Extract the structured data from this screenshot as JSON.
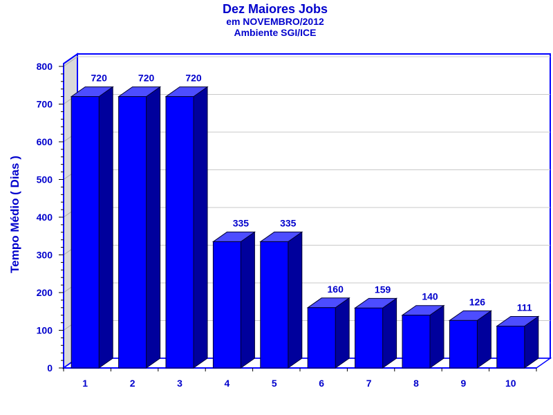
{
  "chart_data": {
    "type": "bar",
    "title": "Dez Maiores Jobs",
    "subtitle_1": "em NOVEMBRO/2012",
    "subtitle_2": "Ambiente SGI/ICE",
    "ylabel": "Tempo Médio ( Dias )",
    "xlabel": "",
    "categories": [
      "1",
      "2",
      "3",
      "4",
      "5",
      "6",
      "7",
      "8",
      "9",
      "10"
    ],
    "values": [
      720,
      720,
      720,
      335,
      335,
      160,
      159,
      140,
      126,
      111
    ],
    "data_labels": [
      "720",
      "720",
      "720",
      "335",
      "335",
      "160",
      "159",
      "140",
      "126",
      "111"
    ],
    "ylim": [
      0,
      800
    ],
    "yticks": [
      "0",
      "100",
      "200",
      "300",
      "400",
      "500",
      "600",
      "700",
      "800"
    ],
    "grid": true,
    "legend": "none",
    "colors": {
      "bar_front": "#0000ff",
      "bar_top": "#4d4dff",
      "bar_side": "#00009c",
      "text": "#0000cc",
      "axis": "#0000ff",
      "wall_left": "#d9d9d9",
      "grid": "#c8c8c8"
    }
  }
}
